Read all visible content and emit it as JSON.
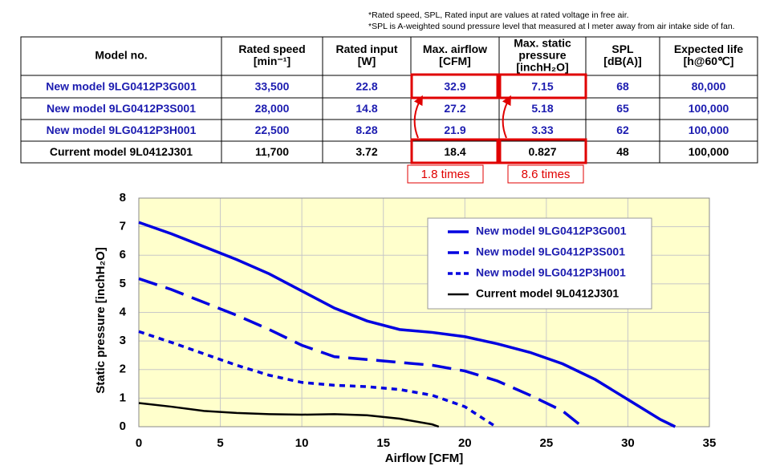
{
  "notes": [
    "*Rated speed, SPL, Rated input are values at rated voltage in free air.",
    "*SPL is A-weighted sound pressure level that measured at l meter away from air intake side of fan."
  ],
  "table": {
    "headers": [
      [
        "Model no."
      ],
      [
        "Rated speed",
        "[min⁻¹]"
      ],
      [
        "Rated input",
        "[W]"
      ],
      [
        "Max. airflow",
        "[CFM]"
      ],
      [
        "Max. static",
        "pressure",
        "[inchH₂O]"
      ],
      [
        "SPL",
        "[dB(A)]"
      ],
      [
        "Expected life",
        "[h@60℃]"
      ]
    ],
    "rows": [
      [
        "New model  9LG0412P3G001",
        "33,500",
        "22.8",
        "32.9",
        "7.15",
        "68",
        "80,000"
      ],
      [
        "New model  9LG0412P3S001",
        "28,000",
        "14.8",
        "27.2",
        "5.18",
        "65",
        "100,000"
      ],
      [
        "New model  9LG0412P3H001",
        "22,500",
        "8.28",
        "21.9",
        "3.33",
        "62",
        "100,000"
      ],
      [
        "Current model  9L0412J301",
        "11,700",
        "3.72",
        "18.4",
        "0.827",
        "48",
        "100,000"
      ]
    ]
  },
  "annotations": [
    "1.8 times",
    "8.6 times"
  ],
  "chart_data": {
    "type": "line",
    "xlabel": "Airflow [CFM]",
    "ylabel": "Static pressure  [inchH₂O]",
    "xlim": [
      0,
      35
    ],
    "xticks": [
      0,
      5,
      10,
      15,
      20,
      25,
      30,
      35
    ],
    "ylim": [
      0,
      8
    ],
    "yticks": [
      0,
      1,
      2,
      3,
      4,
      5,
      6,
      7,
      8
    ],
    "grid": true,
    "background": "#ffffcc",
    "legend": "upper right",
    "series": [
      {
        "name": "New model 9LG0412P3G001",
        "color": "#0000e0",
        "linestyle": "solid",
        "x": [
          0,
          2,
          4,
          6,
          8,
          10,
          12,
          14,
          16,
          18,
          20,
          22,
          24,
          26,
          28,
          30,
          32,
          32.9
        ],
        "values": [
          7.15,
          6.75,
          6.3,
          5.85,
          5.35,
          4.75,
          4.15,
          3.7,
          3.4,
          3.3,
          3.15,
          2.9,
          2.6,
          2.2,
          1.65,
          0.95,
          0.25,
          0
        ]
      },
      {
        "name": "New model 9LG0412P3S001",
        "color": "#0000e0",
        "linestyle": "dash",
        "x": [
          0,
          2,
          4,
          6,
          8,
          10,
          12,
          14,
          16,
          18,
          20,
          22,
          24,
          26,
          27.2
        ],
        "values": [
          5.18,
          4.8,
          4.35,
          3.9,
          3.4,
          2.85,
          2.45,
          2.35,
          2.25,
          2.15,
          1.95,
          1.6,
          1.1,
          0.55,
          0
        ]
      },
      {
        "name": "New model 9LG0412P3H001",
        "color": "#0000e0",
        "linestyle": "dot",
        "x": [
          0,
          2,
          4,
          6,
          8,
          10,
          12,
          14,
          16,
          18,
          20,
          21.9
        ],
        "values": [
          3.33,
          2.95,
          2.55,
          2.15,
          1.8,
          1.55,
          1.45,
          1.4,
          1.3,
          1.1,
          0.7,
          0
        ]
      },
      {
        "name": "Current model   9L0412J301",
        "color": "#000000",
        "linestyle": "solid",
        "x": [
          0,
          2,
          4,
          6,
          8,
          10,
          12,
          14,
          16,
          18,
          18.4
        ],
        "values": [
          0.827,
          0.7,
          0.55,
          0.48,
          0.44,
          0.42,
          0.44,
          0.4,
          0.28,
          0.08,
          0
        ]
      }
    ]
  }
}
